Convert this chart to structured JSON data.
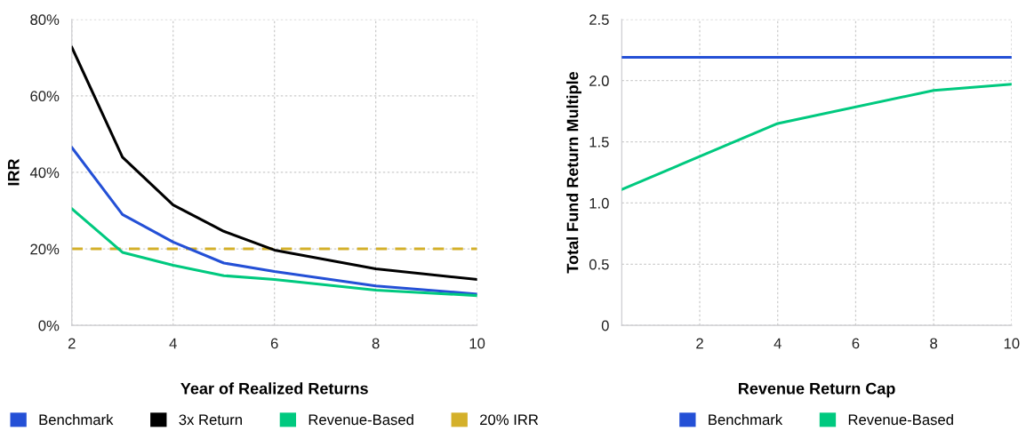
{
  "chart_data": [
    {
      "type": "line",
      "xlabel": "Year of Realized Returns",
      "ylabel": "IRR",
      "x": [
        2,
        3,
        4,
        5,
        6,
        8,
        10
      ],
      "series": [
        {
          "name": "Benchmark",
          "color": "#2450d6",
          "values": [
            46.5,
            29.0,
            21.8,
            16.3,
            14.1,
            10.3,
            8.2
          ]
        },
        {
          "name": "3x Return",
          "color": "#000000",
          "values": [
            72.7,
            44.0,
            31.5,
            24.6,
            19.7,
            14.8,
            12.0
          ]
        },
        {
          "name": "Revenue-Based",
          "color": "#00c97f",
          "values": [
            30.5,
            19.1,
            15.7,
            13.0,
            12.0,
            9.2,
            7.8
          ]
        }
      ],
      "ref_lines": [
        {
          "axis": "y",
          "value": 20,
          "label": "20% IRR",
          "color": "#d4b02a",
          "line_style": "dashed"
        }
      ],
      "xlim": [
        2,
        10
      ],
      "xticks": [
        2,
        4,
        6,
        8,
        10
      ],
      "ylim": [
        0,
        80
      ],
      "yticks": [
        {
          "value": 0,
          "label": "0%"
        },
        {
          "value": 20,
          "label": "20%"
        },
        {
          "value": 40,
          "label": "40%"
        },
        {
          "value": 60,
          "label": "60%"
        },
        {
          "value": 80,
          "label": "80%"
        }
      ],
      "grid": true,
      "legend": "bottom",
      "line_style": "solid",
      "marker": "none"
    },
    {
      "type": "line",
      "xlabel": "Revenue Return Cap",
      "ylabel": "Total Fund Return Multiple",
      "series": [
        {
          "name": "Benchmark",
          "color": "#2450d6",
          "x": [
            0,
            10
          ],
          "values": [
            2.19,
            2.19
          ]
        },
        {
          "name": "Revenue-Based",
          "color": "#00c97f",
          "x": [
            0,
            4,
            8,
            10
          ],
          "values": [
            1.11,
            1.65,
            1.92,
            1.97
          ]
        }
      ],
      "xlim": [
        0,
        10
      ],
      "xticks": [
        2,
        4,
        6,
        8,
        10
      ],
      "ylim": [
        0,
        2.5
      ],
      "yticks": [
        0,
        0.5,
        {
          "value": 1,
          "label": "1.0"
        },
        1.5,
        {
          "value": 2,
          "label": "2.0"
        },
        2.5
      ],
      "grid": true,
      "legend": "bottom",
      "line_style": "solid",
      "marker": "none"
    }
  ]
}
